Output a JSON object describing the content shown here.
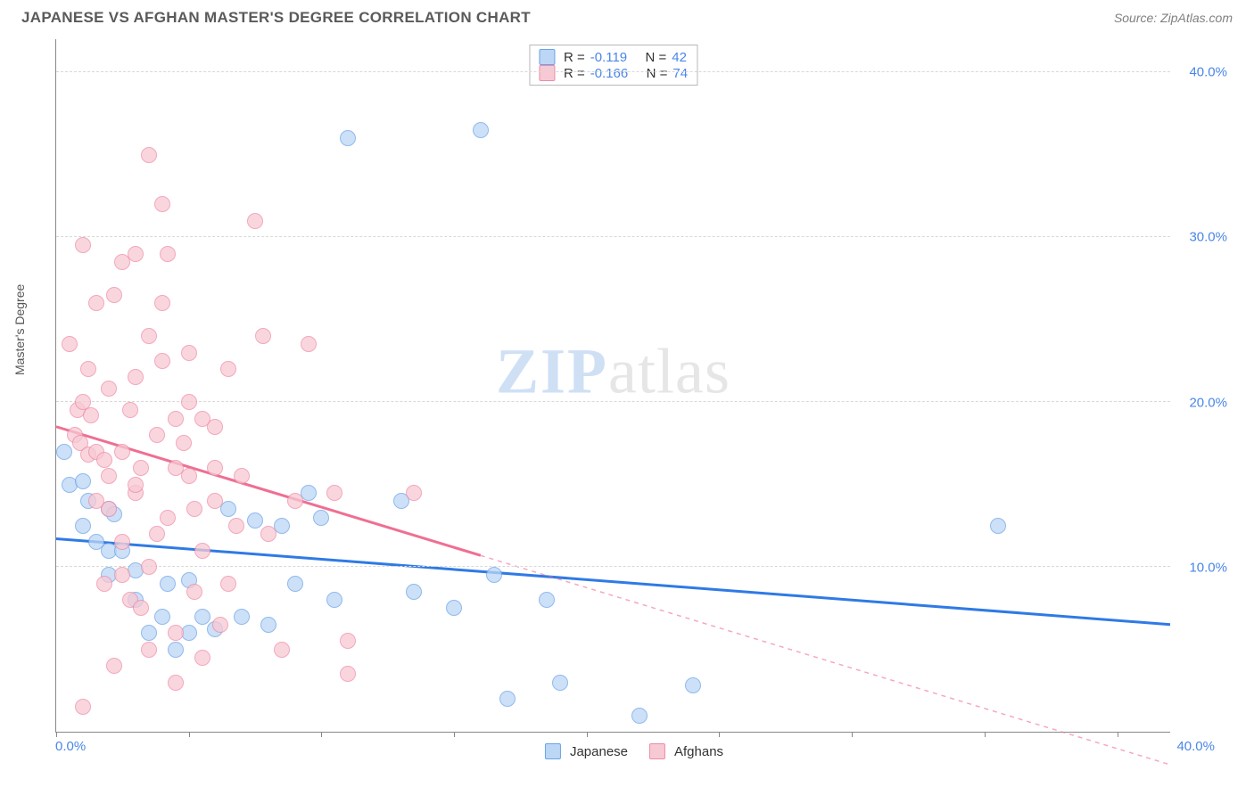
{
  "header": {
    "title": "JAPANESE VS AFGHAN MASTER'S DEGREE CORRELATION CHART",
    "source_prefix": "Source: ",
    "source_name": "ZipAtlas.com"
  },
  "watermark": {
    "part1": "ZIP",
    "part2": "atlas"
  },
  "chart": {
    "type": "scatter",
    "background_color": "#ffffff",
    "grid_color": "#d8d8d8",
    "axis_color": "#888888",
    "y_axis_title": "Master's Degree",
    "y_axis_title_color": "#555555",
    "tick_label_color": "#4a86e8",
    "xlim": [
      0,
      42
    ],
    "ylim": [
      0,
      42
    ],
    "y_gridlines": [
      10,
      20,
      30,
      40
    ],
    "y_tick_labels": [
      "10.0%",
      "20.0%",
      "30.0%",
      "40.0%"
    ],
    "x_gridlines_at": [
      0,
      5,
      10,
      15,
      20,
      25,
      30,
      35,
      40
    ],
    "x_tick_label_origin": "0.0%",
    "x_tick_label_end": "40.0%",
    "series": [
      {
        "name": "Japanese",
        "label": "Japanese",
        "marker_fill": "#bcd6f5",
        "marker_stroke": "#6ba3e8",
        "marker_opacity": 0.75,
        "marker_radius": 9,
        "trend_color": "#2f7ae5",
        "trend_width": 3,
        "trend_solid_xend": 42,
        "r_value": "-0.119",
        "n_value": "42",
        "points": [
          [
            0.3,
            17.0
          ],
          [
            0.5,
            15.0
          ],
          [
            1.0,
            15.2
          ],
          [
            1.2,
            14.0
          ],
          [
            2.0,
            13.5
          ],
          [
            2.2,
            13.2
          ],
          [
            1.0,
            12.5
          ],
          [
            1.5,
            11.5
          ],
          [
            2.0,
            11.0
          ],
          [
            2.5,
            11.0
          ],
          [
            2.0,
            9.5
          ],
          [
            3.0,
            9.8
          ],
          [
            4.2,
            9.0
          ],
          [
            5.0,
            9.2
          ],
          [
            3.0,
            8.0
          ],
          [
            4.0,
            7.0
          ],
          [
            5.5,
            7.0
          ],
          [
            3.5,
            6.0
          ],
          [
            5.0,
            6.0
          ],
          [
            6.0,
            6.2
          ],
          [
            7.0,
            7.0
          ],
          [
            7.5,
            12.8
          ],
          [
            8.5,
            12.5
          ],
          [
            9.0,
            9.0
          ],
          [
            9.5,
            14.5
          ],
          [
            10.0,
            13.0
          ],
          [
            10.5,
            8.0
          ],
          [
            11.0,
            36.0
          ],
          [
            13.0,
            14.0
          ],
          [
            13.5,
            8.5
          ],
          [
            15.0,
            7.5
          ],
          [
            16.0,
            36.5
          ],
          [
            16.5,
            9.5
          ],
          [
            17.0,
            2.0
          ],
          [
            18.5,
            8.0
          ],
          [
            19.0,
            3.0
          ],
          [
            22.0,
            1.0
          ],
          [
            24.0,
            2.8
          ],
          [
            35.5,
            12.5
          ],
          [
            8.0,
            6.5
          ],
          [
            6.5,
            13.5
          ],
          [
            4.5,
            5.0
          ]
        ],
        "trendline": {
          "y_at_x0": 11.7,
          "y_at_xmax": 6.5
        }
      },
      {
        "name": "Afghans",
        "label": "Afghans",
        "marker_fill": "#f7c9d4",
        "marker_stroke": "#ef8ba5",
        "marker_opacity": 0.75,
        "marker_radius": 9,
        "trend_color": "#ef6f93",
        "trend_width": 3,
        "trend_solid_xend": 16,
        "r_value": "-0.166",
        "n_value": "74",
        "points": [
          [
            0.5,
            23.5
          ],
          [
            0.7,
            18.0
          ],
          [
            0.8,
            19.5
          ],
          [
            0.9,
            17.5
          ],
          [
            1.0,
            20.0
          ],
          [
            1.2,
            16.8
          ],
          [
            1.3,
            19.2
          ],
          [
            1.5,
            17.0
          ],
          [
            1.5,
            26.0
          ],
          [
            1.8,
            16.5
          ],
          [
            2.0,
            15.5
          ],
          [
            2.0,
            20.8
          ],
          [
            2.0,
            13.5
          ],
          [
            2.2,
            26.5
          ],
          [
            2.5,
            17.0
          ],
          [
            2.5,
            11.5
          ],
          [
            2.5,
            9.5
          ],
          [
            2.8,
            8.0
          ],
          [
            3.0,
            29.0
          ],
          [
            3.0,
            21.5
          ],
          [
            3.0,
            14.5
          ],
          [
            3.2,
            16.0
          ],
          [
            3.5,
            35.0
          ],
          [
            3.5,
            24.0
          ],
          [
            3.5,
            10.0
          ],
          [
            3.5,
            5.0
          ],
          [
            3.8,
            18.0
          ],
          [
            4.0,
            32.0
          ],
          [
            4.0,
            26.0
          ],
          [
            4.0,
            22.5
          ],
          [
            4.2,
            13.0
          ],
          [
            4.5,
            16.0
          ],
          [
            4.5,
            6.0
          ],
          [
            4.5,
            3.0
          ],
          [
            5.0,
            20.0
          ],
          [
            5.0,
            23.0
          ],
          [
            5.0,
            15.5
          ],
          [
            5.2,
            8.5
          ],
          [
            5.5,
            11.0
          ],
          [
            5.5,
            4.5
          ],
          [
            6.0,
            16.0
          ],
          [
            6.0,
            14.0
          ],
          [
            6.5,
            22.0
          ],
          [
            6.5,
            9.0
          ],
          [
            7.0,
            15.5
          ],
          [
            7.5,
            31.0
          ],
          [
            7.8,
            24.0
          ],
          [
            8.0,
            12.0
          ],
          [
            8.5,
            5.0
          ],
          [
            9.0,
            14.0
          ],
          [
            9.5,
            23.5
          ],
          [
            10.5,
            14.5
          ],
          [
            11.0,
            5.5
          ],
          [
            11.0,
            3.5
          ],
          [
            13.5,
            14.5
          ],
          [
            1.0,
            29.5
          ],
          [
            1.8,
            9.0
          ],
          [
            2.8,
            19.5
          ],
          [
            3.2,
            7.5
          ],
          [
            4.2,
            29.0
          ],
          [
            4.8,
            17.5
          ],
          [
            5.5,
            19.0
          ],
          [
            6.2,
            6.5
          ],
          [
            6.8,
            12.5
          ],
          [
            1.0,
            1.5
          ],
          [
            2.2,
            4.0
          ],
          [
            3.0,
            15.0
          ],
          [
            3.8,
            12.0
          ],
          [
            4.5,
            19.0
          ],
          [
            5.2,
            13.5
          ],
          [
            1.5,
            14.0
          ],
          [
            6.0,
            18.5
          ],
          [
            2.5,
            28.5
          ],
          [
            1.2,
            22.0
          ]
        ],
        "trendline": {
          "y_at_x0": 18.5,
          "y_at_xmax": -2.0
        }
      }
    ],
    "legend_top": {
      "r_label": "R  =",
      "n_label": "N  ="
    },
    "legend_bottom_labels": [
      "Japanese",
      "Afghans"
    ]
  }
}
